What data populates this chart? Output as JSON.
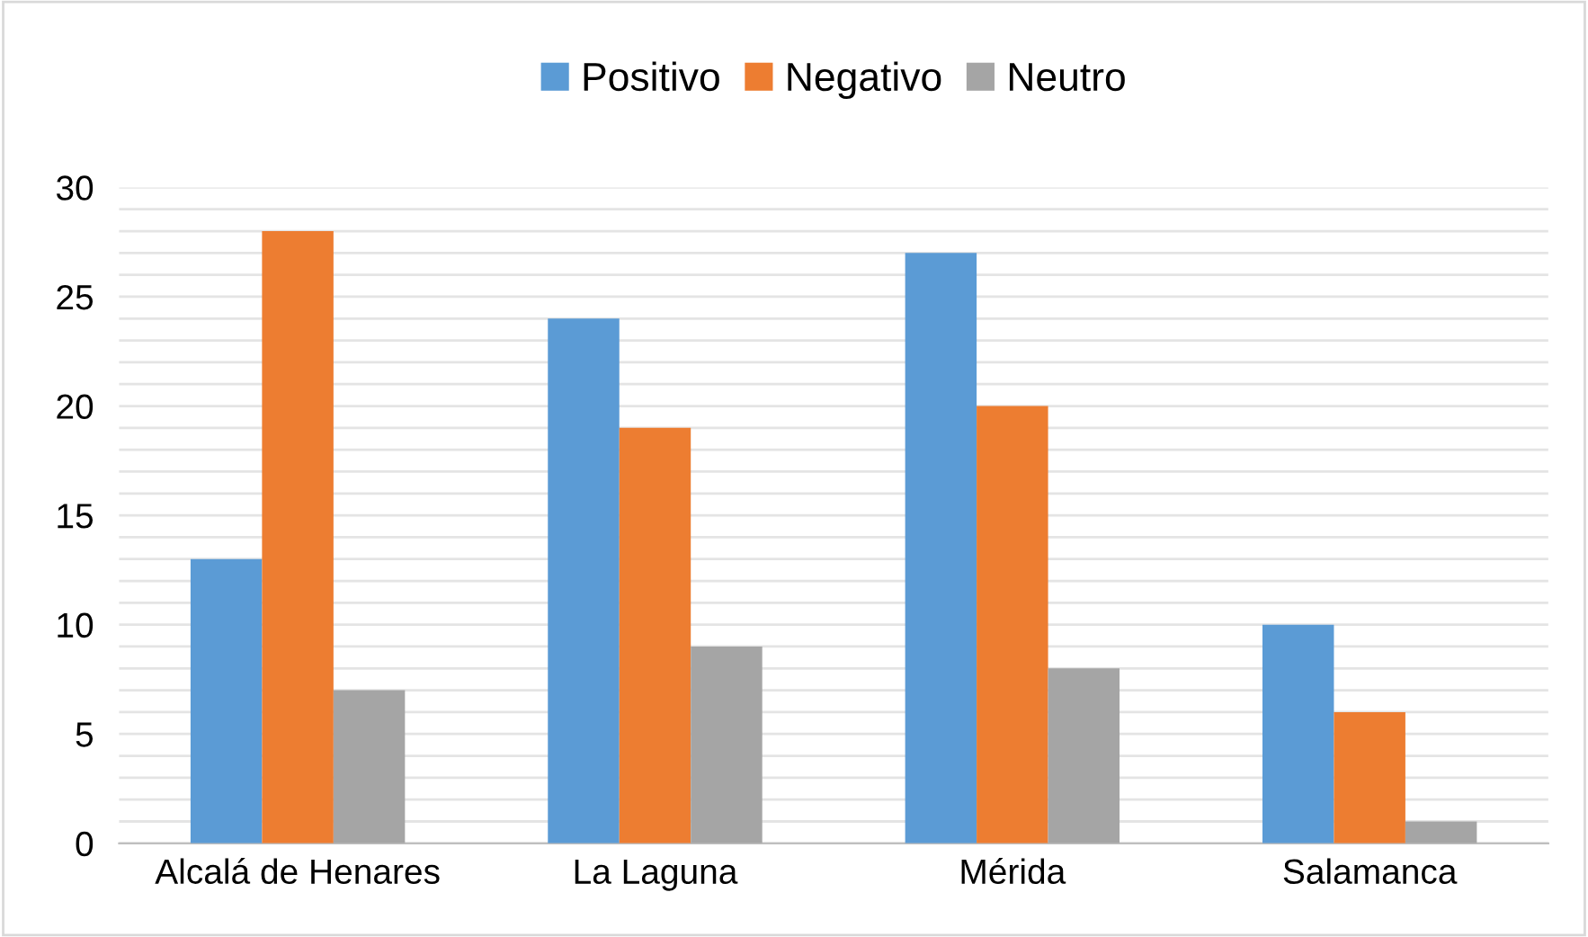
{
  "chart_data": {
    "type": "bar",
    "categories": [
      "Alcalá de Henares",
      "La Laguna",
      "Mérida",
      "Salamanca"
    ],
    "series": [
      {
        "name": "Positivo",
        "color": "#5b9bd5",
        "values": [
          13,
          24,
          27,
          10
        ]
      },
      {
        "name": "Negativo",
        "color": "#ed7d31",
        "values": [
          28,
          19,
          20,
          6
        ]
      },
      {
        "name": "Neutro",
        "color": "#a5a5a5",
        "values": [
          7,
          9,
          8,
          1
        ]
      }
    ],
    "ylim": [
      0,
      30
    ],
    "yticks": [
      0,
      {
        "value": 1,
        "label": null
      },
      {
        "value": 2,
        "label": null
      },
      {
        "value": 3,
        "label": null
      },
      {
        "value": 4,
        "label": null
      },
      5,
      {
        "value": 6,
        "label": null
      },
      {
        "value": 7,
        "label": null
      },
      {
        "value": 8,
        "label": null
      },
      {
        "value": 9,
        "label": null
      },
      10,
      {
        "value": 11,
        "label": null
      },
      {
        "value": 12,
        "label": null
      },
      {
        "value": 13,
        "label": null
      },
      {
        "value": 14,
        "label": null
      },
      15,
      {
        "value": 16,
        "label": null
      },
      {
        "value": 17,
        "label": null
      },
      {
        "value": 18,
        "label": null
      },
      {
        "value": 19,
        "label": null
      },
      20,
      {
        "value": 21,
        "label": null
      },
      {
        "value": 22,
        "label": null
      },
      {
        "value": 23,
        "label": null
      },
      {
        "value": 24,
        "label": null
      },
      25,
      {
        "value": 26,
        "label": null
      },
      {
        "value": 27,
        "label": null
      },
      {
        "value": 28,
        "label": null
      },
      {
        "value": 29,
        "label": null
      },
      30
    ],
    "grid": "y",
    "legend": "top"
  }
}
